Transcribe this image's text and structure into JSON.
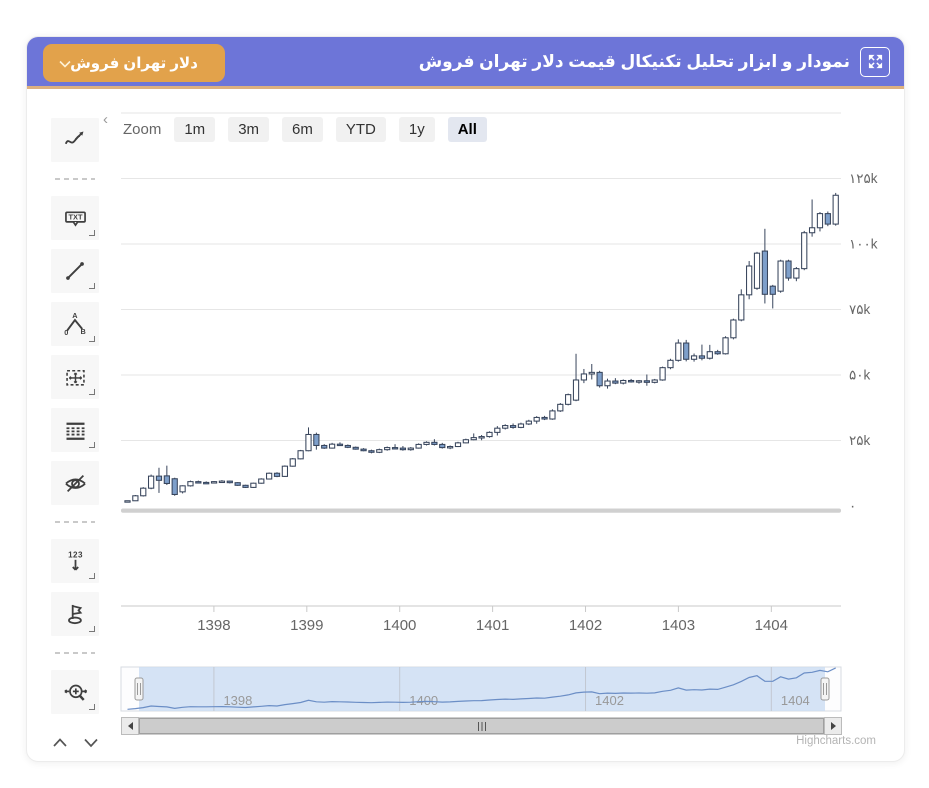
{
  "header": {
    "title": "نمودار و ابزار تحلیل تکنیکال قیمت دلار تهران فروش",
    "fullscreen_icon": "expand-arrows-icon",
    "symbol_dropdown_label": "دلار تهران فروش"
  },
  "toolbar": {
    "collapse_chevron": "‹",
    "items": [
      "indicators",
      "annotation-text",
      "trend-line",
      "elliott-wave",
      "measure",
      "fibonacci",
      "toggle-annotations",
      "vertical-labels",
      "flag",
      "zoom-pan"
    ],
    "text_icon_label": "TXT",
    "counter_icon_label": "123",
    "elliott_labels": {
      "start": "0",
      "a": "A",
      "b": "B"
    }
  },
  "range_selector": {
    "label": "Zoom",
    "buttons": [
      "1m",
      "3m",
      "6m",
      "YTD",
      "1y",
      "All"
    ],
    "selected": "All"
  },
  "chart_data": {
    "type": "candlestick",
    "title": "",
    "x_axis_labels": [
      "1398",
      "1399",
      "1400",
      "1401",
      "1402",
      "1403",
      "1404"
    ],
    "x_axis_years": [
      1398,
      1399,
      1400,
      1401,
      1402,
      1403,
      1404
    ],
    "y_axis_ticks": [
      {
        "label": "۱۲۵k",
        "value_k": 125
      },
      {
        "label": "۱۰۰k",
        "value_k": 100
      },
      {
        "label": "۷۵k",
        "value_k": 75
      },
      {
        "label": "۵۰k",
        "value_k": 50
      },
      {
        "label": "۲۵k",
        "value_k": 25
      },
      {
        "label": "۰",
        "value_k": 0
      }
    ],
    "y_grid_values_k": [
      150,
      125,
      100,
      75,
      50,
      25
    ],
    "ylim_k": [
      0,
      150
    ],
    "xlim_years": [
      1397.0,
      1404.75
    ],
    "series_start_year": 1397.07,
    "series_step_years": 0.0847,
    "candles_ohlc_k": [
      [
        1.9,
        2.1,
        1.6,
        2.0
      ],
      [
        2.0,
        4.2,
        1.9,
        3.9
      ],
      [
        3.9,
        7.2,
        3.6,
        6.8
      ],
      [
        6.8,
        12.0,
        6.4,
        11.4
      ],
      [
        11.4,
        14.6,
        5.0,
        9.8
      ],
      [
        11.5,
        15.4,
        8.0,
        8.6
      ],
      [
        10.4,
        10.8,
        3.9,
        4.4
      ],
      [
        5.4,
        7.9,
        4.8,
        7.7
      ],
      [
        7.7,
        9.7,
        7.4,
        9.3
      ],
      [
        9.3,
        9.7,
        8.7,
        9.0
      ],
      [
        9.0,
        9.4,
        8.5,
        8.9
      ],
      [
        8.9,
        9.5,
        8.6,
        9.3
      ],
      [
        9.3,
        9.9,
        8.9,
        9.5
      ],
      [
        9.5,
        9.7,
        8.6,
        8.9
      ],
      [
        8.9,
        9.1,
        7.7,
        7.9
      ],
      [
        7.9,
        8.1,
        6.9,
        7.1
      ],
      [
        7.1,
        8.9,
        6.9,
        8.7
      ],
      [
        8.7,
        10.6,
        8.5,
        10.3
      ],
      [
        10.3,
        12.8,
        10.1,
        12.5
      ],
      [
        12.5,
        12.9,
        11.0,
        11.3
      ],
      [
        11.3,
        15.5,
        11.1,
        15.2
      ],
      [
        15.2,
        18.3,
        15.0,
        18.0
      ],
      [
        18.0,
        21.4,
        17.8,
        21.1
      ],
      [
        21.1,
        30.0,
        20.9,
        27.3
      ],
      [
        27.3,
        28.0,
        21.5,
        23.1
      ],
      [
        23.1,
        23.6,
        21.8,
        22.1
      ],
      [
        22.1,
        24.1,
        21.9,
        23.6
      ],
      [
        23.6,
        24.3,
        22.9,
        23.1
      ],
      [
        23.1,
        23.5,
        22.1,
        22.4
      ],
      [
        22.4,
        22.7,
        21.5,
        21.7
      ],
      [
        21.7,
        22.1,
        20.9,
        21.1
      ],
      [
        21.1,
        21.5,
        20.1,
        20.5
      ],
      [
        20.5,
        21.9,
        20.2,
        21.5
      ],
      [
        21.5,
        22.7,
        21.1,
        22.3
      ],
      [
        22.3,
        23.6,
        21.9,
        22.1
      ],
      [
        22.1,
        22.9,
        21.1,
        21.5
      ],
      [
        21.5,
        22.5,
        21.1,
        22.1
      ],
      [
        22.1,
        23.9,
        21.9,
        23.5
      ],
      [
        23.5,
        24.7,
        23.1,
        24.3
      ],
      [
        24.3,
        25.5,
        23.1,
        23.5
      ],
      [
        23.5,
        24.1,
        21.9,
        22.3
      ],
      [
        22.3,
        23.1,
        21.7,
        22.7
      ],
      [
        22.7,
        24.5,
        22.5,
        24.1
      ],
      [
        24.1,
        25.7,
        23.9,
        25.3
      ],
      [
        25.3,
        27.7,
        25.1,
        26.1
      ],
      [
        26.1,
        27.1,
        25.1,
        26.5
      ],
      [
        26.5,
        28.5,
        26.1,
        28.1
      ],
      [
        28.1,
        30.5,
        26.9,
        29.7
      ],
      [
        29.7,
        31.2,
        29.2,
        30.7
      ],
      [
        30.7,
        31.5,
        29.5,
        30.0
      ],
      [
        30.0,
        31.8,
        29.7,
        31.3
      ],
      [
        31.3,
        32.9,
        30.9,
        32.4
      ],
      [
        32.4,
        34.3,
        31.4,
        33.8
      ],
      [
        33.8,
        34.4,
        32.8,
        33.2
      ],
      [
        33.2,
        36.9,
        32.9,
        36.3
      ],
      [
        36.3,
        39.3,
        35.9,
        38.8
      ],
      [
        38.8,
        42.9,
        38.4,
        42.5
      ],
      [
        40.4,
        58.1,
        40.0,
        48.1
      ],
      [
        48.1,
        52.3,
        46.9,
        50.4
      ],
      [
        50.4,
        54.2,
        48.3,
        51.0
      ],
      [
        51.0,
        51.6,
        45.2,
        45.9
      ],
      [
        45.9,
        48.6,
        44.8,
        47.7
      ],
      [
        47.7,
        48.8,
        46.5,
        46.9
      ],
      [
        46.9,
        48.3,
        46.4,
        47.9
      ],
      [
        47.9,
        48.5,
        47.1,
        47.5
      ],
      [
        47.5,
        48.1,
        46.7,
        47.8
      ],
      [
        47.8,
        50.2,
        45.9,
        47.2
      ],
      [
        47.2,
        48.5,
        46.8,
        48.1
      ],
      [
        48.1,
        53.2,
        47.8,
        52.8
      ],
      [
        52.8,
        56.2,
        52.2,
        55.6
      ],
      [
        55.6,
        63.6,
        55.1,
        62.2
      ],
      [
        62.2,
        63.4,
        55.2,
        56.0
      ],
      [
        56.0,
        58.2,
        55.1,
        57.3
      ],
      [
        57.3,
        61.6,
        55.6,
        56.4
      ],
      [
        56.4,
        61.5,
        55.9,
        58.9
      ],
      [
        58.9,
        59.6,
        57.7,
        58.1
      ],
      [
        58.1,
        64.8,
        57.8,
        64.2
      ],
      [
        64.2,
        71.5,
        63.6,
        71.0
      ],
      [
        71.0,
        82.7,
        70.5,
        80.6
      ],
      [
        80.6,
        93.5,
        78.9,
        91.6
      ],
      [
        83.1,
        97.0,
        82.5,
        96.5
      ],
      [
        97.3,
        105.8,
        77.3,
        80.8
      ],
      [
        83.9,
        84.4,
        75.4,
        80.8
      ],
      [
        82.0,
        94.0,
        81.4,
        93.5
      ],
      [
        93.5,
        94.0,
        86.0,
        87.0
      ],
      [
        87.0,
        91.2,
        85.8,
        90.6
      ],
      [
        90.6,
        105.0,
        90.0,
        104.3
      ],
      [
        104.3,
        117.0,
        102.8,
        106.2
      ],
      [
        106.2,
        112.2,
        104.8,
        111.6
      ],
      [
        111.6,
        112.4,
        106.8,
        107.6
      ],
      [
        107.6,
        119.5,
        107.0,
        118.6
      ]
    ],
    "navigator_labels": [
      "1398",
      "1400",
      "1402",
      "1404"
    ],
    "navigator_years": [
      1398,
      1400,
      1402,
      1404
    ],
    "legend": "none",
    "grid": "horizontal-on"
  },
  "credits": "Highcharts.com",
  "colors": {
    "header_bg": "#6d75d8",
    "header_underline": "#ddb07f",
    "accent_orange": "#e2a24b",
    "candle_up": "#ffffff",
    "candle_down": "#7e9fca",
    "candle_stroke": "#38455c",
    "grid": "#e6e6e6",
    "axis_line": "#c9c9c9",
    "axis_text": "#666666",
    "baseline_band": "#d0d0d0",
    "navigator_line": "#6b8ec6",
    "navigator_mask": "#cbdcf3",
    "navigator_border": "#d7dbe2",
    "selected_range_bg": "#e3e7f0"
  }
}
